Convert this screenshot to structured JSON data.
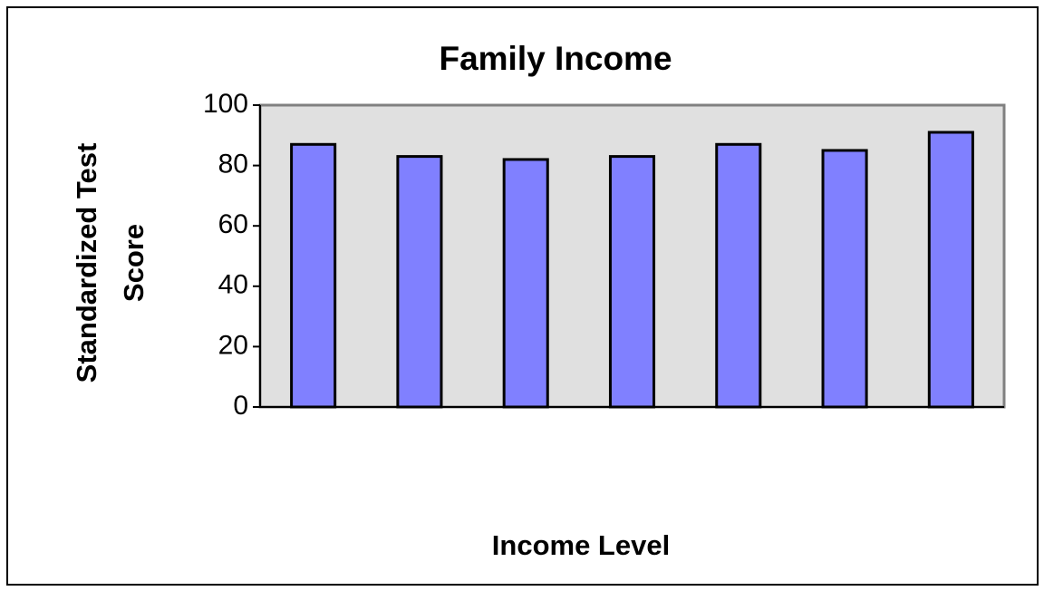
{
  "chart_data": {
    "type": "bar",
    "title": "Family Income",
    "x_label": "Income Level",
    "y_label": [
      "Standardized Test",
      "Score"
    ],
    "categories": [
      null,
      null,
      null,
      null,
      null,
      null,
      null
    ],
    "values": [
      87,
      83,
      82,
      83,
      87,
      85,
      91
    ],
    "color": "#8080ff",
    "ylim": [
      0,
      100
    ],
    "yticks": [
      0,
      20,
      40,
      60,
      80,
      100
    ],
    "grid": false
  }
}
